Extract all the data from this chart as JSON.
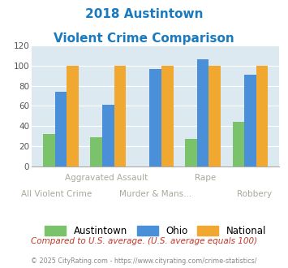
{
  "title_line1": "2018 Austintown",
  "title_line2": "Violent Crime Comparison",
  "title_color": "#1a7abf",
  "austintown": [
    32,
    29,
    0,
    27,
    44
  ],
  "ohio": [
    74,
    61,
    97,
    106,
    91
  ],
  "national": [
    100,
    100,
    100,
    100,
    100
  ],
  "austintown_color": "#7ac36a",
  "ohio_color": "#4a90d9",
  "national_color": "#f0a830",
  "ylim": [
    0,
    120
  ],
  "yticks": [
    0,
    20,
    40,
    60,
    80,
    100,
    120
  ],
  "plot_bg": "#dce9f0",
  "footer_text": "Compared to U.S. average. (U.S. average equals 100)",
  "footer_color": "#c0392b",
  "credit_text": "© 2025 CityRating.com - https://www.cityrating.com/crime-statistics/",
  "credit_color": "#888888",
  "legend_labels": [
    "Austintown",
    "Ohio",
    "National"
  ],
  "xlabel_top": [
    "",
    "Aggravated Assault",
    "",
    "Rape",
    ""
  ],
  "xlabel_bot": [
    "All Violent Crime",
    "",
    "Murder & Mans...",
    "",
    "Robbery"
  ],
  "label_color": "#aaa89a",
  "austintown_missing": [
    2
  ]
}
